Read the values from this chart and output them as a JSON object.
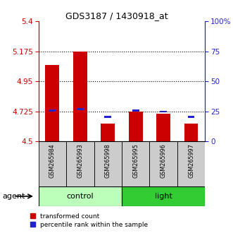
{
  "title": "GDS3187 / 1430918_at",
  "samples": [
    "GSM265984",
    "GSM265993",
    "GSM265998",
    "GSM265995",
    "GSM265996",
    "GSM265997"
  ],
  "red_values": [
    5.07,
    5.175,
    4.635,
    4.72,
    4.705,
    4.635
  ],
  "blue_values": [
    4.725,
    4.735,
    4.675,
    4.725,
    4.715,
    4.675
  ],
  "y_min": 4.5,
  "y_max": 5.4,
  "y_ticks_left": [
    4.5,
    4.725,
    4.95,
    5.175,
    5.4
  ],
  "y_ticks_right": [
    0,
    25,
    50,
    75,
    100
  ],
  "right_tick_labels": [
    "0",
    "25",
    "50",
    "75",
    "100%"
  ],
  "dotted_lines": [
    4.725,
    4.95,
    5.175
  ],
  "bar_width": 0.5,
  "blue_bar_width": 0.25,
  "blue_bar_height": 0.015,
  "red_color": "#cc0000",
  "blue_color": "#2222cc",
  "control_color": "#bbffbb",
  "light_color": "#33cc33",
  "left_axis_color": "#cc0000",
  "right_axis_color": "#2222cc",
  "agent_label": "agent",
  "legend_red": "transformed count",
  "legend_blue": "percentile rank within the sample",
  "control_samples": [
    0,
    1,
    2
  ],
  "light_samples": [
    3,
    4,
    5
  ]
}
